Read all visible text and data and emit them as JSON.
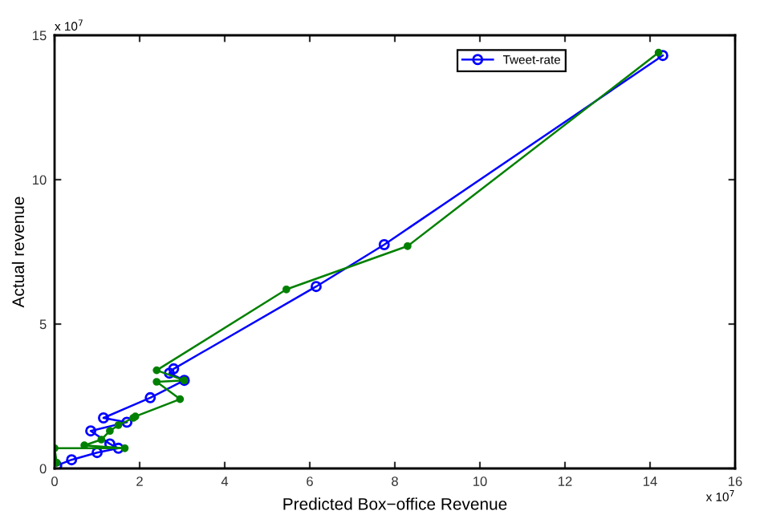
{
  "chart_data": {
    "type": "line",
    "xlabel": "Predicted Box−office Revenue",
    "ylabel": "Actual revenue",
    "annotations": [
      "x 10$^{7}$",
      "x 10$^{7}$"
    ],
    "xlim": [
      0,
      16
    ],
    "ylim": [
      0,
      15
    ],
    "xticks": [
      0,
      2,
      4,
      6,
      8,
      10,
      12,
      14,
      16
    ],
    "yticks": [
      0,
      5,
      10,
      15
    ],
    "grid": false,
    "legend": "top right",
    "series": [
      {
        "name": "Tweet-rate",
        "color": "#0000ff",
        "marker": "circle",
        "x": [
          0.05,
          0.4,
          1.0,
          1.5,
          1.3,
          0.85,
          1.7,
          1.15,
          2.25,
          3.05,
          2.7,
          2.8,
          6.15,
          7.75,
          14.3
        ],
        "values": [
          0.1,
          0.3,
          0.55,
          0.7,
          0.85,
          1.3,
          1.6,
          1.75,
          2.45,
          3.05,
          3.3,
          3.45,
          6.3,
          7.75,
          14.3
        ]
      },
      {
        "color": "#008000",
        "marker": "dot",
        "x": [
          0.05,
          0.0,
          1.65,
          0.7,
          1.1,
          1.3,
          1.5,
          1.85,
          1.9,
          2.95,
          2.4,
          3.05,
          2.4,
          5.45,
          8.3,
          14.2
        ],
        "values": [
          0.2,
          0.7,
          0.7,
          0.8,
          1.0,
          1.3,
          1.5,
          1.75,
          1.8,
          2.4,
          3.0,
          3.05,
          3.4,
          6.2,
          7.7,
          14.4
        ]
      }
    ]
  }
}
